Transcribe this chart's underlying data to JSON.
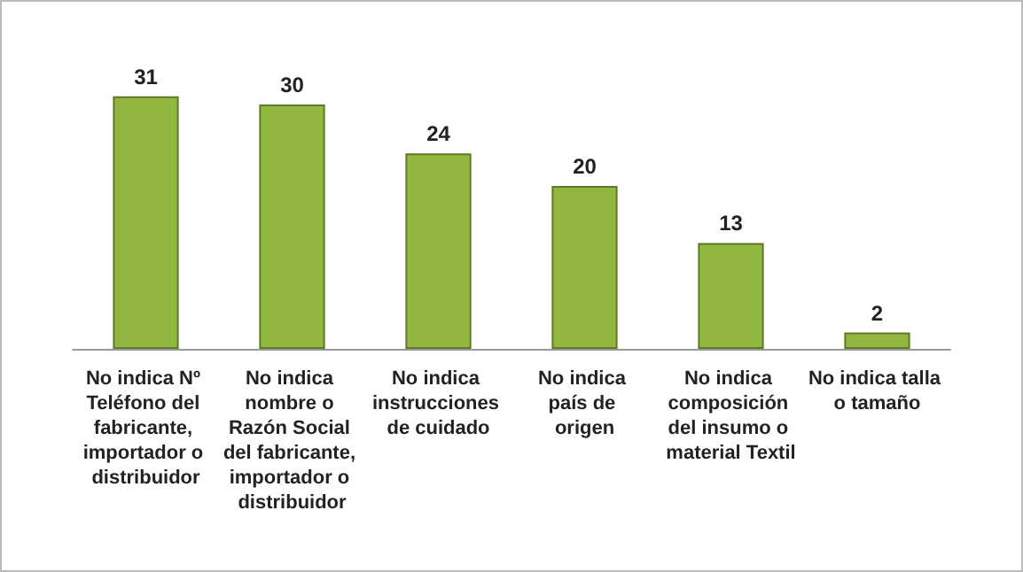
{
  "chart_data": {
    "type": "bar",
    "categories": [
      "No indica Nº Teléfono del fabricante, importador o distribuidor",
      "No indica nombre o Razón Social del fabricante, importador o distribuidor",
      "No indica instrucciones de cuidado",
      "No indica país de origen",
      "No indica composición del insumo o material Textil",
      "No indica talla o tamaño"
    ],
    "values": [
      31,
      30,
      24,
      20,
      13,
      2
    ],
    "color": "#92b73f",
    "data_labels": true
  }
}
